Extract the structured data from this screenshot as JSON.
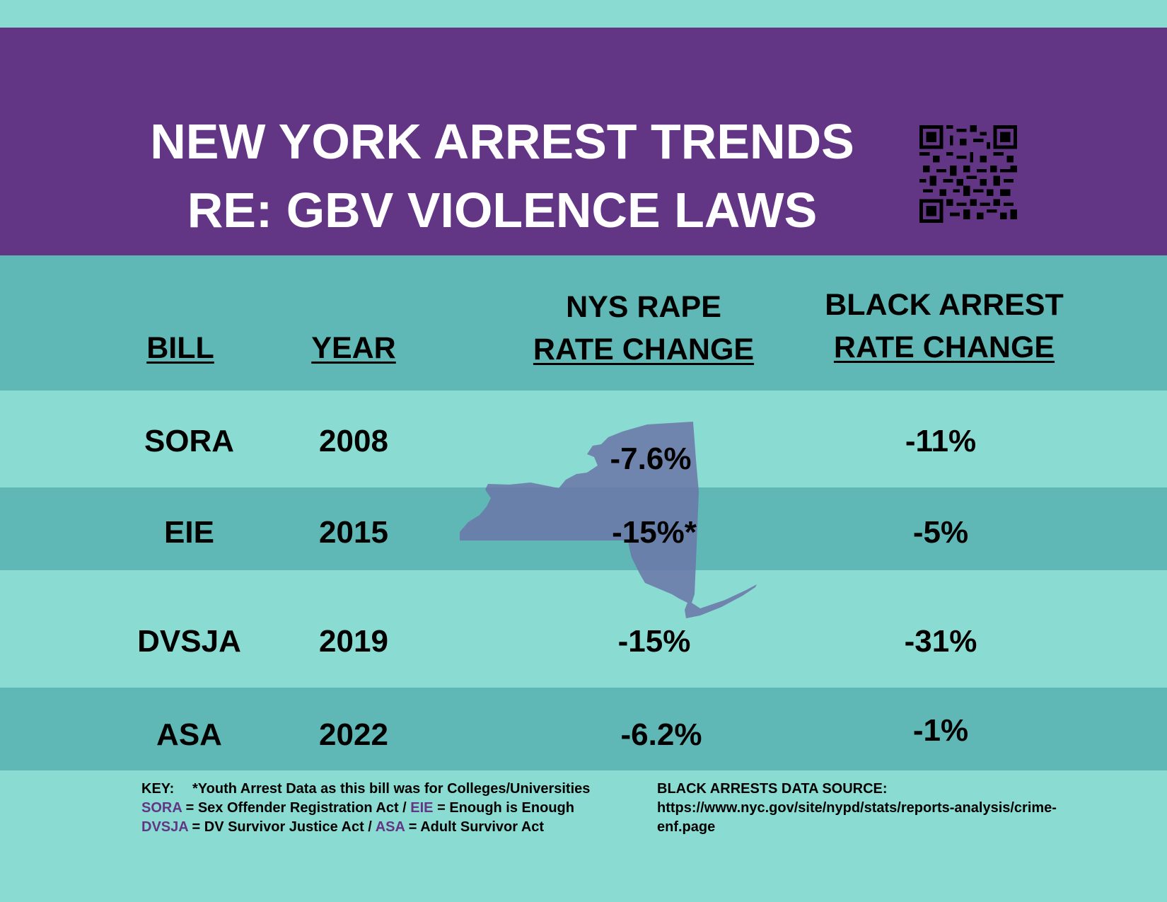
{
  "title": {
    "line1": "NEW YORK ARREST TRENDS",
    "line2": "RE: GBV VIOLENCE LAWS"
  },
  "table": {
    "headers": {
      "bill": "BILL",
      "year": "YEAR",
      "rape_line1": "NYS RAPE",
      "rape_line2": "RATE CHANGE",
      "black_line1": "BLACK ARREST",
      "black_line2": "RATE CHANGE"
    },
    "rows": [
      {
        "bill": "SORA",
        "year": "2008",
        "rape": "-7.6%",
        "black": "-11%"
      },
      {
        "bill": "EIE",
        "year": "2015",
        "rape": "-15%*",
        "black": "-5%"
      },
      {
        "bill": "DVSJA",
        "year": "2019",
        "rape": "-15%",
        "black": "-31%"
      },
      {
        "bill": "ASA",
        "year": "2022",
        "rape": "-6.2%",
        "black": "-1%"
      }
    ]
  },
  "footer": {
    "key_label": "KEY:",
    "key_note": "*Youth Arrest Data as this bill was for Colleges/Universities",
    "line2": {
      "a1": "SORA",
      "t1": " = Sex Offender Registration Act / ",
      "a2": "EIE",
      "t2": " = Enough is Enough"
    },
    "line3": {
      "a1": "DVSJA",
      "t1": " = DV Survivor Justice Act / ",
      "a2": "ASA",
      "t2": " = Adult Survivor Act"
    },
    "source_label": "BLACK ARRESTS DATA SOURCE:",
    "source_url_1": "https://www.nyc.gov/site/nypd/stats/reports-analysis/crime-",
    "source_url_2": "enf.page"
  },
  "colors": {
    "purple": "#623685",
    "teal_dark": "#5fb8b5",
    "teal_light": "#8adcd2",
    "map": "#6b75a8"
  },
  "icons": {
    "qr": "qr-code-icon",
    "map": "new-york-state-map"
  }
}
